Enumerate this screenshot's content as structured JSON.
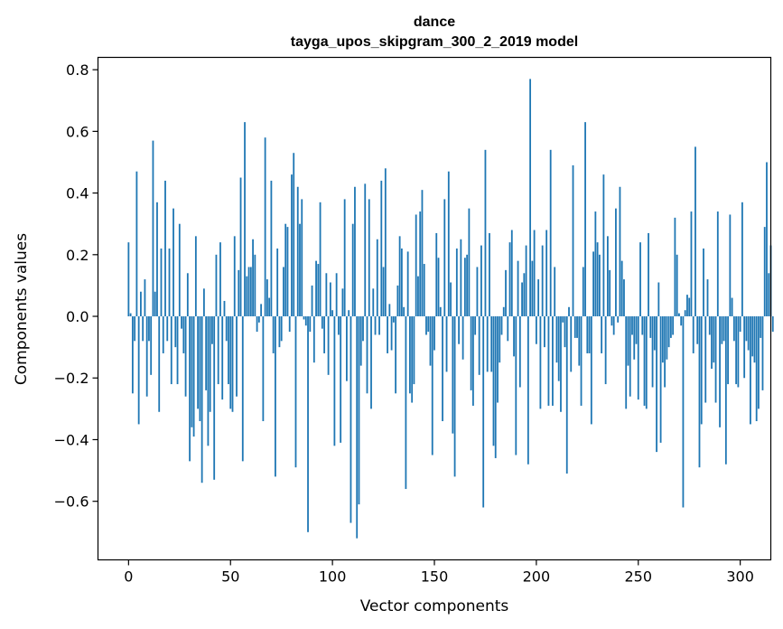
{
  "chart_data": {
    "type": "bar",
    "title": "dance",
    "subtitle": "tayga_upos_skipgram_300_2_2019 model",
    "xlabel": "Vector components",
    "ylabel": "Components values",
    "xlim": [
      -15,
      315
    ],
    "ylim": [
      -0.79,
      0.84
    ],
    "xticks": [
      0,
      50,
      100,
      150,
      200,
      250,
      300
    ],
    "xtick_labels": [
      "0",
      "50",
      "100",
      "150",
      "200",
      "250",
      "300"
    ],
    "yticks": [
      -0.6,
      -0.4,
      -0.2,
      0.0,
      0.2,
      0.4,
      0.6,
      0.8
    ],
    "ytick_labels": [
      "−0.6",
      "−0.4",
      "−0.2",
      "0.0",
      "0.2",
      "0.4",
      "0.6",
      "0.8"
    ],
    "grid": false,
    "bar_color": "#1f77b4",
    "values": [
      0.24,
      0.01,
      -0.25,
      -0.08,
      0.47,
      -0.35,
      0.08,
      -0.08,
      0.12,
      -0.26,
      -0.08,
      -0.19,
      0.57,
      0.08,
      0.37,
      -0.31,
      0.22,
      -0.12,
      0.44,
      -0.08,
      0.22,
      -0.22,
      0.35,
      -0.1,
      -0.22,
      0.3,
      -0.04,
      -0.12,
      -0.26,
      0.14,
      -0.47,
      -0.36,
      -0.39,
      0.26,
      -0.3,
      -0.34,
      -0.54,
      0.09,
      -0.24,
      -0.42,
      -0.31,
      -0.09,
      -0.53,
      0.2,
      -0.22,
      0.24,
      -0.27,
      0.05,
      -0.08,
      -0.22,
      -0.3,
      -0.31,
      0.26,
      -0.26,
      0.15,
      0.45,
      -0.47,
      0.63,
      0.13,
      0.16,
      0.16,
      0.25,
      0.2,
      -0.05,
      -0.02,
      0.04,
      -0.34,
      0.58,
      0.12,
      0.06,
      0.44,
      -0.12,
      -0.52,
      0.22,
      -0.1,
      -0.08,
      0.16,
      0.3,
      0.29,
      -0.05,
      0.46,
      0.53,
      -0.49,
      0.42,
      0.3,
      0.38,
      -0.01,
      -0.03,
      -0.7,
      -0.05,
      0.1,
      -0.15,
      0.18,
      0.17,
      0.37,
      -0.04,
      -0.12,
      0.14,
      -0.19,
      0.11,
      0.02,
      -0.42,
      0.14,
      -0.06,
      -0.41,
      0.09,
      0.38,
      -0.21,
      0.02,
      -0.67,
      0.3,
      0.42,
      -0.72,
      -0.61,
      -0.16,
      -0.08,
      0.43,
      -0.25,
      0.38,
      -0.3,
      0.09,
      -0.06,
      0.25,
      -0.06,
      0.44,
      0.16,
      0.48,
      -0.12,
      0.04,
      -0.11,
      -0.02,
      -0.25,
      0.1,
      0.26,
      0.22,
      0.03,
      -0.56,
      0.21,
      -0.25,
      -0.28,
      -0.22,
      0.33,
      0.13,
      0.34,
      0.41,
      0.17,
      -0.06,
      -0.05,
      -0.16,
      -0.45,
      -0.11,
      0.27,
      0.19,
      0.03,
      -0.34,
      0.38,
      -0.18,
      0.47,
      0.11,
      -0.38,
      -0.52,
      0.22,
      -0.09,
      0.25,
      -0.14,
      0.19,
      0.2,
      0.35,
      -0.24,
      -0.29,
      -0.06,
      0.16,
      -0.19,
      0.23,
      -0.62,
      0.54,
      -0.18,
      0.27,
      -0.18,
      -0.42,
      -0.46,
      -0.28,
      -0.15,
      -0.06,
      0.03,
      0.15,
      -0.08,
      0.24,
      0.28,
      -0.13,
      -0.45,
      0.18,
      -0.23,
      0.11,
      0.14,
      0.23,
      -0.48,
      0.77,
      0.18,
      0.28,
      -0.09,
      0.12,
      -0.3,
      0.23,
      -0.1,
      0.28,
      -0.29,
      0.54,
      -0.29,
      0.16,
      -0.15,
      -0.21,
      -0.31,
      -0.02,
      -0.1,
      -0.51,
      0.03,
      -0.18,
      0.49,
      -0.07,
      -0.07,
      -0.16,
      -0.29,
      0.16,
      0.63,
      -0.12,
      -0.12,
      -0.35,
      0.21,
      0.34,
      0.24,
      0.2,
      -0.12,
      0.46,
      -0.22,
      0.26,
      0.15,
      -0.03,
      -0.06,
      0.35,
      -0.02,
      0.42,
      0.18,
      0.12,
      -0.3,
      -0.16,
      -0.26,
      -0.06,
      -0.14,
      -0.09,
      -0.27,
      0.24,
      -0.06,
      -0.29,
      -0.3,
      0.27,
      -0.07,
      -0.23,
      -0.11,
      -0.44,
      0.11,
      -0.41,
      -0.15,
      -0.23,
      -0.14,
      -0.1,
      -0.07,
      -0.06,
      0.32,
      0.2,
      0.01,
      -0.03,
      -0.62,
      0.02,
      0.07,
      0.06,
      0.34,
      -0.12,
      0.55,
      -0.09,
      -0.49,
      -0.35,
      0.22,
      -0.28,
      0.12,
      -0.06,
      -0.17,
      -0.15,
      -0.28,
      0.34,
      -0.36,
      -0.09,
      -0.08,
      -0.48,
      -0.22,
      0.33,
      0.06,
      -0.08,
      -0.22,
      -0.23,
      -0.05,
      0.37,
      -0.2,
      -0.08,
      -0.11,
      -0.35,
      -0.13,
      -0.15,
      -0.34,
      -0.3,
      -0.07,
      -0.24,
      0.29,
      0.5,
      0.14,
      0.23,
      -0.05
    ]
  }
}
